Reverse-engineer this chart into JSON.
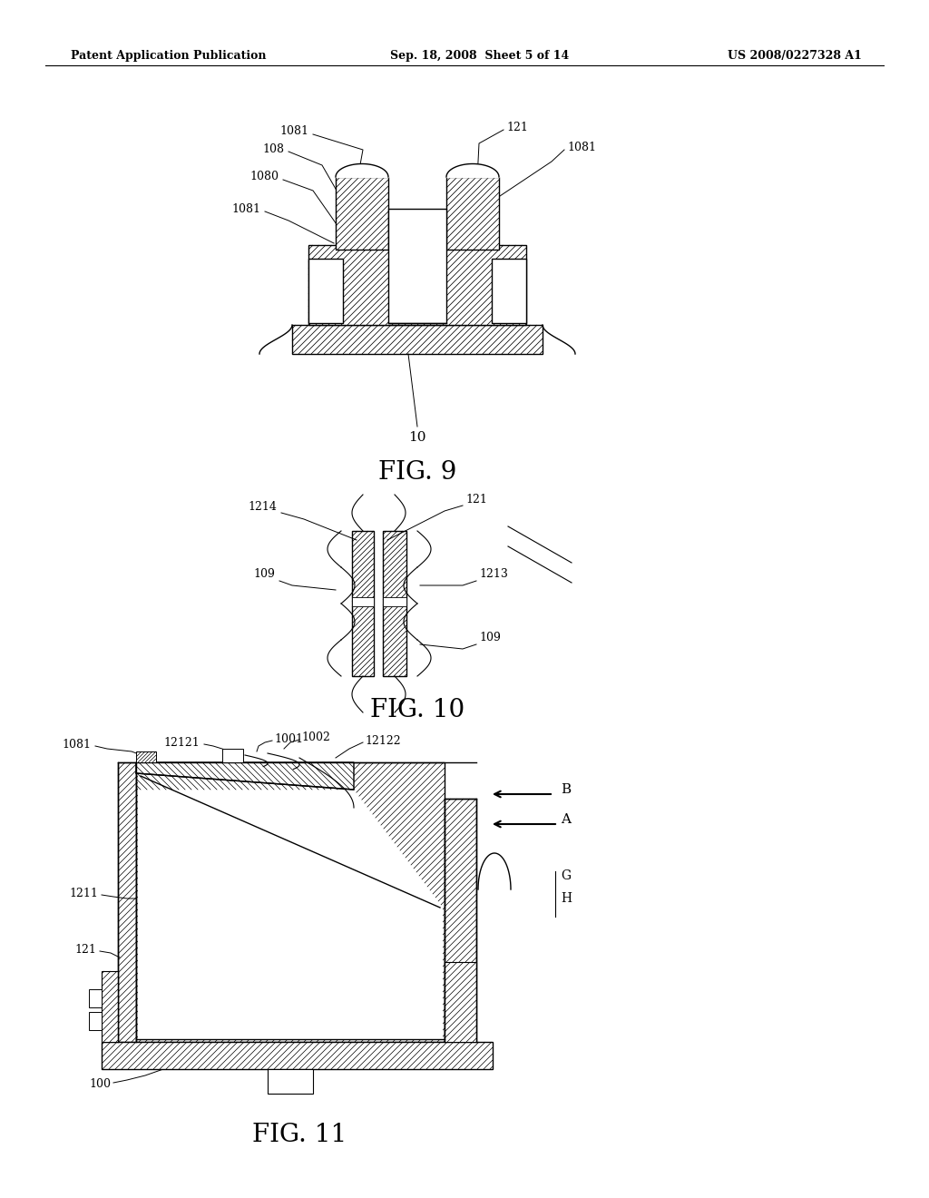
{
  "bg_color": "#ffffff",
  "header_left": "Patent Application Publication",
  "header_mid": "Sep. 18, 2008  Sheet 5 of 14",
  "header_right": "US 2008/0227328 A1",
  "fig9_title": "FIG. 9",
  "fig10_title": "FIG. 10",
  "fig11_title": "FIG. 11"
}
